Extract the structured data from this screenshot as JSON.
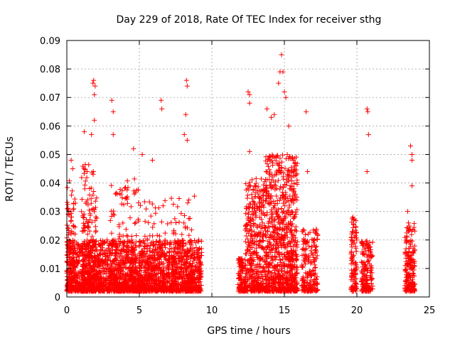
{
  "chart_data": {
    "type": "scatter",
    "title": "Day 229 of 2018, Rate Of TEC Index for receiver sthg",
    "xlabel": "GPS time / hours",
    "ylabel": "ROTI / TECUs",
    "xlim": [
      0,
      25
    ],
    "ylim": [
      0,
      0.09
    ],
    "x_ticks": [
      0,
      5,
      10,
      15,
      20,
      25
    ],
    "y_ticks": [
      0,
      0.01,
      0.02,
      0.03,
      0.04,
      0.05,
      0.06,
      0.07,
      0.08,
      0.09
    ],
    "x_tick_labels": [
      "0",
      "5",
      "10",
      "15",
      "20",
      "25"
    ],
    "y_tick_labels": [
      "0",
      "0.01",
      "0.02",
      "0.03",
      "0.04",
      "0.05",
      "0.06",
      "0.07",
      "0.08",
      "0.09"
    ],
    "grid": true,
    "marker": "plus",
    "marker_color": "#ff0000",
    "series": [
      {
        "name": "ROTI",
        "clusters": [
          {
            "x_range": [
              0.0,
              9.3
            ],
            "base_max": 0.018,
            "count": 2300
          },
          {
            "x_range": [
              0.0,
              0.6
            ],
            "base_max": 0.04,
            "count": 90
          },
          {
            "x_range": [
              1.0,
              2.1
            ],
            "base_max": 0.045,
            "count": 200
          },
          {
            "x_range": [
              3.0,
              5.0
            ],
            "base_max": 0.04,
            "count": 140
          },
          {
            "x_range": [
              5.0,
              8.8
            ],
            "base_max": 0.034,
            "count": 160
          },
          {
            "x_range": [
              11.8,
              12.3
            ],
            "base_max": 0.012,
            "count": 110
          },
          {
            "x_range": [
              12.3,
              13.7
            ],
            "base_max": 0.04,
            "count": 420
          },
          {
            "x_range": [
              13.7,
              15.9
            ],
            "base_max": 0.048,
            "count": 850
          },
          {
            "x_range": [
              16.2,
              17.3
            ],
            "base_max": 0.022,
            "count": 200
          },
          {
            "x_range": [
              19.6,
              20.0
            ],
            "base_max": 0.026,
            "count": 110
          },
          {
            "x_range": [
              20.3,
              21.1
            ],
            "base_max": 0.018,
            "count": 170
          },
          {
            "x_range": [
              23.3,
              24.0
            ],
            "base_max": 0.024,
            "count": 200
          }
        ],
        "outliers": [
          {
            "x": 0.3,
            "y": 0.048
          },
          {
            "x": 0.4,
            "y": 0.045
          },
          {
            "x": 1.2,
            "y": 0.058
          },
          {
            "x": 1.8,
            "y": 0.075
          },
          {
            "x": 1.85,
            "y": 0.076
          },
          {
            "x": 1.9,
            "y": 0.071
          },
          {
            "x": 1.95,
            "y": 0.074
          },
          {
            "x": 1.9,
            "y": 0.062
          },
          {
            "x": 1.7,
            "y": 0.057
          },
          {
            "x": 3.1,
            "y": 0.069
          },
          {
            "x": 3.2,
            "y": 0.065
          },
          {
            "x": 3.2,
            "y": 0.057
          },
          {
            "x": 4.6,
            "y": 0.052
          },
          {
            "x": 5.2,
            "y": 0.05
          },
          {
            "x": 5.9,
            "y": 0.048
          },
          {
            "x": 6.5,
            "y": 0.069
          },
          {
            "x": 6.55,
            "y": 0.066
          },
          {
            "x": 8.1,
            "y": 0.057
          },
          {
            "x": 8.2,
            "y": 0.064
          },
          {
            "x": 8.25,
            "y": 0.076
          },
          {
            "x": 8.3,
            "y": 0.074
          },
          {
            "x": 8.3,
            "y": 0.055
          },
          {
            "x": 12.5,
            "y": 0.072
          },
          {
            "x": 12.6,
            "y": 0.071
          },
          {
            "x": 12.6,
            "y": 0.068
          },
          {
            "x": 12.6,
            "y": 0.051
          },
          {
            "x": 13.8,
            "y": 0.066
          },
          {
            "x": 14.1,
            "y": 0.063
          },
          {
            "x": 14.3,
            "y": 0.064
          },
          {
            "x": 14.6,
            "y": 0.075
          },
          {
            "x": 14.7,
            "y": 0.079
          },
          {
            "x": 14.8,
            "y": 0.085
          },
          {
            "x": 14.9,
            "y": 0.079
          },
          {
            "x": 15.0,
            "y": 0.072
          },
          {
            "x": 15.1,
            "y": 0.07
          },
          {
            "x": 15.3,
            "y": 0.06
          },
          {
            "x": 15.6,
            "y": 0.048
          },
          {
            "x": 16.5,
            "y": 0.065
          },
          {
            "x": 16.6,
            "y": 0.044
          },
          {
            "x": 20.7,
            "y": 0.066
          },
          {
            "x": 20.75,
            "y": 0.065
          },
          {
            "x": 20.8,
            "y": 0.057
          },
          {
            "x": 20.7,
            "y": 0.044
          },
          {
            "x": 23.5,
            "y": 0.03
          },
          {
            "x": 23.7,
            "y": 0.053
          },
          {
            "x": 23.8,
            "y": 0.05
          },
          {
            "x": 23.8,
            "y": 0.048
          },
          {
            "x": 23.8,
            "y": 0.039
          }
        ]
      }
    ]
  }
}
